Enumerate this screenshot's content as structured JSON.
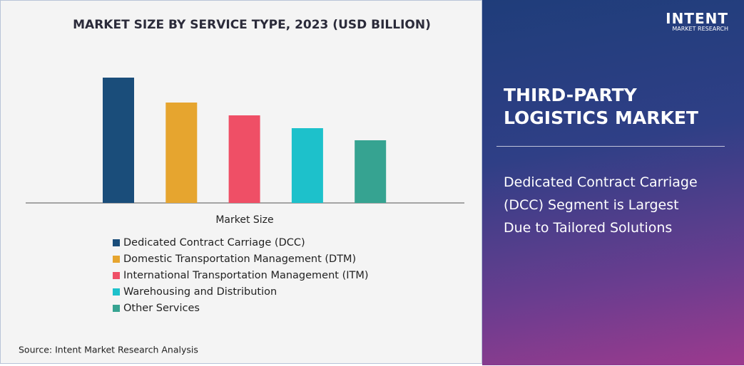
{
  "chart_data": {
    "type": "bar",
    "title": "MARKET SIZE BY SERVICE TYPE, 2023 (USD BILLION)",
    "categories": [
      "Market Size"
    ],
    "series": [
      {
        "name": "Dedicated Contract Carriage (DCC)",
        "color": "#1a4d7a",
        "values": [
          176
        ]
      },
      {
        "name": "Domestic Transportation Management (DTM)",
        "color": "#e6a52f",
        "values": [
          141
        ]
      },
      {
        "name": "International Transportation Management (ITM)",
        "color": "#ef4f66",
        "values": [
          123
        ]
      },
      {
        "name": "Warehousing and Distribution",
        "color": "#1dc1cb",
        "values": [
          105
        ]
      },
      {
        "name": "Other Services",
        "color": "#36a391",
        "values": [
          88
        ]
      }
    ],
    "ylim": [
      0,
      200
    ],
    "source": "Source: Intent Market Research Analysis"
  },
  "panel": {
    "logo": {
      "name": "INTENT",
      "tagline": "MARKET RESEARCH"
    },
    "title": [
      "THIRD-PARTY",
      "LOGISTICS MARKET"
    ],
    "description": [
      "Dedicated Contract Carriage",
      "(DCC) Segment is Largest",
      "Due to Tailored Solutions"
    ]
  }
}
